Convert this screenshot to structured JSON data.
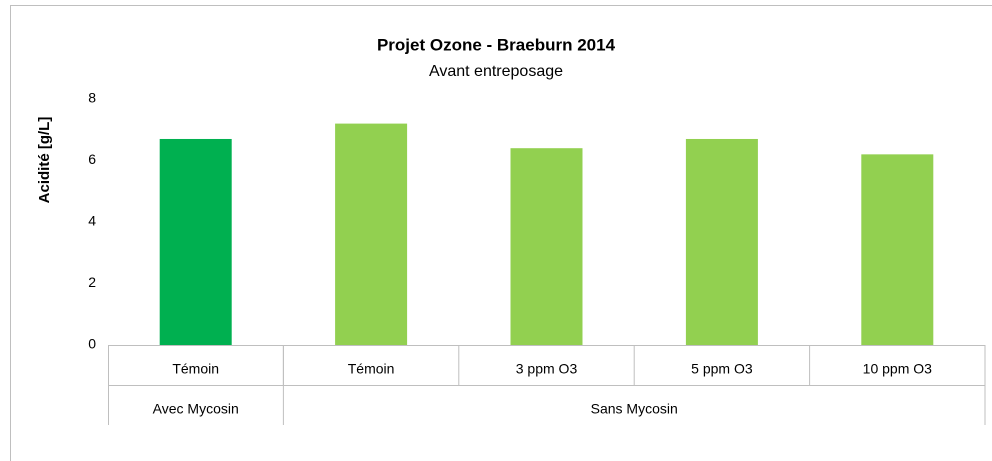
{
  "chart_data": {
    "type": "bar",
    "title": "Projet Ozone - Braeburn 2014",
    "subtitle": "Avant entreposage",
    "y_label": "Acidité [g/L]",
    "categories": [
      "Témoin",
      "Témoin",
      "3 ppm O3",
      "5 ppm O3",
      "10 ppm O3"
    ],
    "groups": [
      {
        "name": "Avec Mycosin",
        "span": 1
      },
      {
        "name": "Sans Mycosin",
        "span": 4
      }
    ],
    "values": [
      6.7,
      7.2,
      6.4,
      6.7,
      6.2
    ],
    "colors": [
      "#00b050",
      "#92d050",
      "#92d050",
      "#92d050",
      "#92d050"
    ],
    "ylim": [
      0,
      8
    ],
    "yticks": [
      0,
      2,
      4,
      6,
      8
    ],
    "grid": false
  }
}
